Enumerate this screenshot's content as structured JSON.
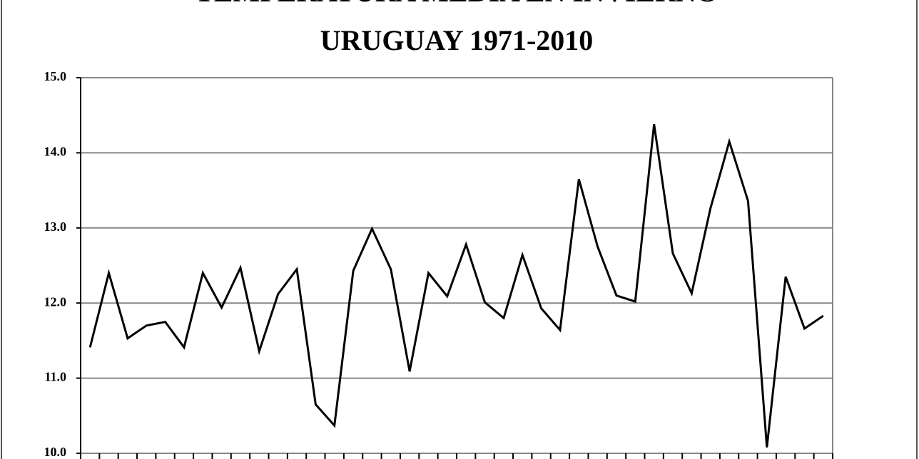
{
  "chart_data": {
    "type": "line",
    "title": [
      "TEMPERATURA MEDIA EN INVIERNO",
      "URUGUAY 1971-2010"
    ],
    "categories": [
      null,
      null,
      null,
      null,
      null,
      null,
      null,
      null,
      null,
      null,
      null,
      null,
      null,
      null,
      null,
      null,
      null,
      null,
      null,
      null,
      null,
      null,
      null,
      null,
      null,
      null,
      null,
      null,
      null,
      null,
      null,
      null,
      null,
      null,
      null,
      null,
      null,
      null,
      null,
      null
    ],
    "values": [
      11.41,
      12.4,
      11.53,
      11.7,
      11.75,
      11.41,
      12.4,
      11.94,
      12.47,
      11.36,
      12.12,
      12.45,
      10.65,
      10.37,
      12.43,
      12.99,
      12.45,
      11.09,
      12.4,
      12.09,
      12.78,
      12.01,
      11.8,
      12.64,
      11.93,
      11.64,
      13.65,
      12.75,
      12.1,
      12.02,
      14.38,
      12.66,
      12.13,
      13.26,
      14.15,
      13.36,
      10.08,
      12.35,
      11.66,
      11.83
    ],
    "color": "#000000",
    "ylim": [
      10,
      15
    ],
    "yticks": [
      {
        "value": 10,
        "label": "10.0"
      },
      {
        "value": 11,
        "label": "11.0"
      },
      {
        "value": 12,
        "label": "12.0"
      },
      {
        "value": 13,
        "label": "13.0"
      },
      {
        "value": 14,
        "label": "14.0"
      },
      {
        "value": 15,
        "label": "15.0"
      }
    ],
    "grid": true
  }
}
